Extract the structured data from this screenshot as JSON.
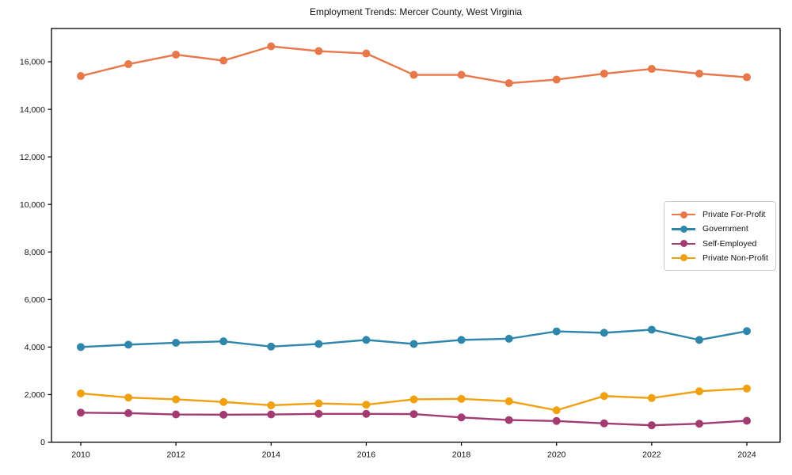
{
  "chart_data": {
    "type": "line",
    "title": "Employment Trends: Mercer County, West Virginia",
    "xlabel": "",
    "ylabel": "",
    "x": [
      2010,
      2011,
      2012,
      2013,
      2014,
      2015,
      2016,
      2017,
      2018,
      2019,
      2020,
      2021,
      2022,
      2023,
      2024
    ],
    "xtick_values": [
      2010,
      2012,
      2014,
      2016,
      2018,
      2020,
      2022,
      2024
    ],
    "ytick_values": [
      0,
      2000,
      4000,
      6000,
      8000,
      10000,
      12000,
      14000,
      16000
    ],
    "ytick_labels": [
      "0",
      "2,000",
      "4,000",
      "6,000",
      "8,000",
      "10,000",
      "12,000",
      "14,000",
      "16,000"
    ],
    "ylim": [
      0,
      17400
    ],
    "grid": false,
    "legend_position": "right-middle",
    "marker": "circle",
    "series": [
      {
        "name": "Private For-Profit",
        "color": "#E8774A",
        "values": [
          15400,
          15900,
          16300,
          16050,
          16650,
          16450,
          16350,
          15450,
          15450,
          15100,
          15250,
          15500,
          15700,
          15500,
          15350
        ]
      },
      {
        "name": "Government",
        "color": "#2E86AB",
        "values": [
          4000,
          4100,
          4180,
          4240,
          4020,
          4130,
          4300,
          4130,
          4300,
          4350,
          4660,
          4600,
          4730,
          4300,
          4670
        ]
      },
      {
        "name": "Self-Employed",
        "color": "#A23B72",
        "values": [
          1240,
          1220,
          1165,
          1155,
          1165,
          1190,
          1190,
          1180,
          1040,
          930,
          890,
          790,
          710,
          775,
          900
        ]
      },
      {
        "name": "Private Non-Profit",
        "color": "#F0A011",
        "values": [
          2050,
          1875,
          1800,
          1690,
          1550,
          1630,
          1575,
          1800,
          1820,
          1720,
          1340,
          1940,
          1855,
          2140,
          2255
        ]
      }
    ]
  }
}
